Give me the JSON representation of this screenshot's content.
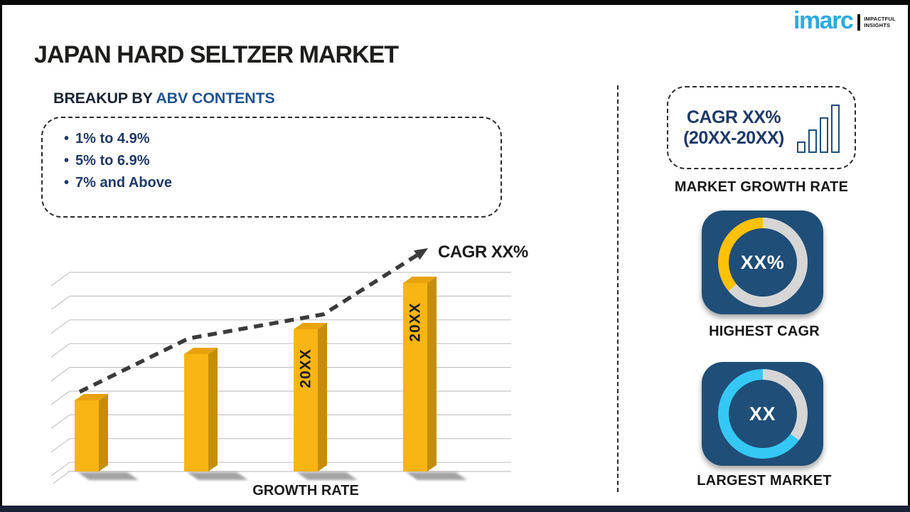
{
  "brand": {
    "logo_text": "imarc",
    "tagline_line1": "IMPACTFUL",
    "tagline_line2": "INSIGHTS",
    "logo_color": "#29ABE2"
  },
  "header": {
    "title": "JAPAN HARD SELTZER MARKET"
  },
  "breakup": {
    "label_prefix": "BREAKUP BY ",
    "label_highlight": "ABV CONTENTS",
    "items": [
      "1% to 4.9%",
      "5% to 6.9%",
      "7% and Above"
    ]
  },
  "chart_data": {
    "type": "bar",
    "title": "",
    "xlabel": "GROWTH RATE",
    "ylabel": "",
    "categories": [
      "",
      "",
      "20XX",
      "20XX"
    ],
    "values": [
      100,
      165,
      200,
      265
    ],
    "values_note": "no numeric axis shown; values are relative bar heights (px)",
    "grid": "horizontal lines, 3D perspective ticks at left",
    "legend": "none",
    "trend_annotation": "CAGR XX%",
    "trend_style": "dashed rising arrow",
    "colors": {
      "bar_front": "#F9B513",
      "bar_top": "#E8A30B",
      "bar_side": "#C68E06",
      "bar_shadow": "#4a4a4a",
      "grid_line": "#c4c4c4",
      "trend_line": "#3b3b3b",
      "bar_label_text": "#1c1c1c"
    }
  },
  "sidebar": {
    "cagr_box": {
      "line1": "CAGR XX%",
      "line2": "(20XX-20XX)",
      "icon_bar_heights": [
        16,
        33,
        50,
        68
      ]
    },
    "market_growth_rate_label": "MARKET GROWTH RATE",
    "highest_cagr": {
      "value": "XX%",
      "label": "HIGHEST CAGR",
      "accent_color": "#FFC107",
      "ring_color": "#D6D6D6",
      "accent_percent": 36
    },
    "largest_market": {
      "value": "XX",
      "label": "LARGEST MARKET",
      "accent_color": "#35C8F5",
      "ring_color": "#D6D6D6",
      "accent_percent": 65
    },
    "tile_color": "#1f4e78"
  }
}
